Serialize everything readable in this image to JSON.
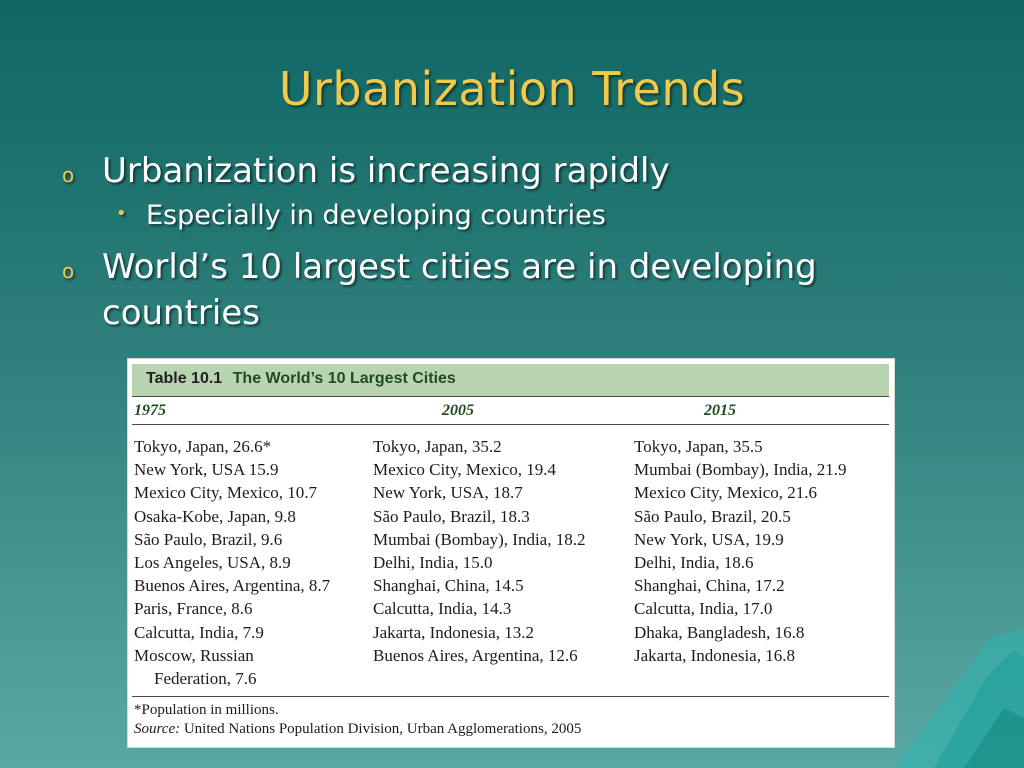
{
  "slide": {
    "title": "Urbanization Trends",
    "bullets": [
      {
        "marker": "o",
        "text": "Urbanization is increasing rapidly",
        "sub": [
          {
            "marker": "•",
            "text": "Especially in developing countries"
          }
        ]
      },
      {
        "marker": "o",
        "text": "World’s 10 largest cities are in developing",
        "text2": "countries"
      }
    ]
  },
  "table": {
    "label_num": "Table 10.1",
    "label_title": "The World’s 10 Largest Cities",
    "columns": [
      "1975",
      "2005",
      "2015"
    ],
    "col_1975": [
      "Tokyo, Japan, 26.6*",
      "New York, USA 15.9",
      "Mexico City, Mexico, 10.7",
      "Osaka-Kobe, Japan, 9.8",
      "São Paulo, Brazil, 9.6",
      "Los Angeles, USA, 8.9",
      "Buenos Aires, Argentina, 8.7",
      "Paris, France, 8.6",
      "Calcutta, India, 7.9",
      "Moscow, Russian",
      "Federation, 7.6"
    ],
    "col_2005": [
      "Tokyo, Japan, 35.2",
      "Mexico City, Mexico, 19.4",
      "New York, USA, 18.7",
      "São Paulo, Brazil, 18.3",
      "Mumbai (Bombay), India, 18.2",
      "Delhi, India, 15.0",
      "Shanghai, China, 14.5",
      "Calcutta, India, 14.3",
      "Jakarta, Indonesia, 13.2",
      "Buenos Aires, Argentina, 12.6"
    ],
    "col_2015": [
      "Tokyo, Japan, 35.5",
      "Mumbai (Bombay), India, 21.9",
      "Mexico City, Mexico, 21.6",
      "São Paulo, Brazil, 20.5",
      "New York, USA, 19.9",
      "Delhi, India, 18.6",
      "Shanghai, China, 17.2",
      "Calcutta, India, 17.0",
      "Dhaka, Bangladesh, 16.8",
      "Jakarta, Indonesia, 16.8"
    ],
    "footnote": "*Population in millions.",
    "source_label": "Source:",
    "source_text": "United Nations Population Division, Urban Agglomerations, 2005"
  },
  "colors": {
    "title": "#f2c94a",
    "header_band": "#b9d4b0",
    "year_text": "#1f4d1c"
  }
}
